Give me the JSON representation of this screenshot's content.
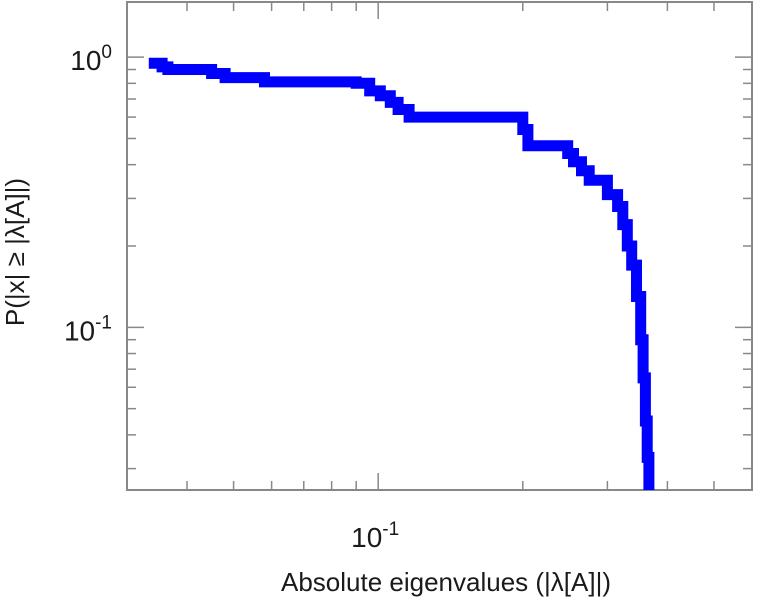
{
  "chart_data": {
    "type": "line",
    "xlabel": "Absolute eigenvalues (|λ[A]|)",
    "ylabel": "P(|x| ≥ |λ[A]|)",
    "xscale": "log",
    "yscale": "log",
    "xlim": [
      0.03,
      0.6
    ],
    "ylim": [
      0.025,
      1.6
    ],
    "grid": false,
    "colors": {
      "series": "#0000ff",
      "axes": "#888888"
    },
    "x_ticks": [
      {
        "value": 0.1,
        "base": "10",
        "exp": "-1"
      }
    ],
    "y_ticks": [
      {
        "value": 1,
        "base": "10",
        "exp": "0"
      },
      {
        "value": 0.1,
        "base": "10",
        "exp": "-1"
      }
    ],
    "series": [
      {
        "step": "post",
        "points": [
          [
            0.0342,
            0.95
          ],
          [
            0.0355,
            0.92
          ],
          [
            0.0365,
            0.9
          ],
          [
            0.045,
            0.87
          ],
          [
            0.048,
            0.84
          ],
          [
            0.058,
            0.81
          ],
          [
            0.09,
            0.8
          ],
          [
            0.096,
            0.75
          ],
          [
            0.101,
            0.72
          ],
          [
            0.106,
            0.68
          ],
          [
            0.11,
            0.64
          ],
          [
            0.116,
            0.6
          ],
          [
            0.2,
            0.54
          ],
          [
            0.205,
            0.47
          ],
          [
            0.248,
            0.44
          ],
          [
            0.255,
            0.41
          ],
          [
            0.265,
            0.38
          ],
          [
            0.275,
            0.35
          ],
          [
            0.3,
            0.31
          ],
          [
            0.315,
            0.28
          ],
          [
            0.323,
            0.24
          ],
          [
            0.33,
            0.2
          ],
          [
            0.337,
            0.17
          ],
          [
            0.345,
            0.13
          ],
          [
            0.352,
            0.09
          ],
          [
            0.356,
            0.065
          ],
          [
            0.36,
            0.045
          ],
          [
            0.363,
            0.033
          ],
          [
            0.366,
            0.025
          ]
        ]
      }
    ]
  }
}
